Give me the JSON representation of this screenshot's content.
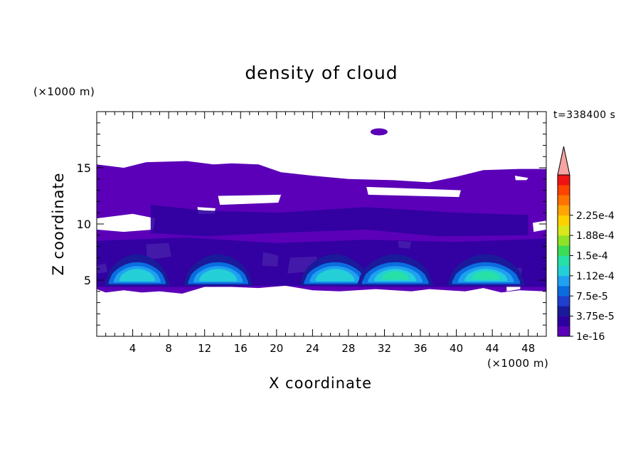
{
  "chart_data": {
    "type": "heatmap",
    "title": "density of cloud",
    "annotation": "t=338400 s",
    "xlabel": "X coordinate",
    "ylabel": "Z coordinate",
    "x_unit": "(×1000 m)",
    "y_unit": "(×1000 m)",
    "xlim": [
      0,
      50
    ],
    "ylim": [
      0,
      20
    ],
    "x_ticks": [
      4,
      8,
      12,
      16,
      20,
      24,
      28,
      32,
      36,
      40,
      44,
      48
    ],
    "y_ticks": [
      5,
      10,
      15
    ],
    "colorbar": {
      "labels": [
        "1e-16",
        "3.75e-5",
        "7.5e-5",
        "1.12e-4",
        "1.5e-4",
        "1.88e-4",
        "2.25e-4"
      ],
      "colors": [
        "#5b00b8",
        "#2f00a0",
        "#1a1a9a",
        "#1f3fcf",
        "#0b6ce0",
        "#1fa0f0",
        "#24cfd8",
        "#27e0a8",
        "#3ddc57",
        "#8ee227",
        "#d8e81a",
        "#ffd000",
        "#ffa400",
        "#ff7300",
        "#ff4300",
        "#f01313"
      ],
      "overflow_color": "#f5a3a3"
    },
    "regions": [
      {
        "level": 0,
        "x_range": [
          0,
          50
        ],
        "z_range": [
          4,
          15.5
        ],
        "description_value": "1e-16"
      },
      {
        "level": 1,
        "x_range": [
          0,
          50
        ],
        "z_range": [
          4.2,
          12
        ]
      },
      {
        "level": 2,
        "x_range": [
          0,
          50
        ],
        "z_range": [
          4.5,
          8
        ]
      },
      {
        "level": 5,
        "x_range": [
          2,
          48
        ],
        "z_range": [
          5,
          6.5
        ]
      },
      {
        "level": 7,
        "x_range": [
          30,
          35
        ],
        "z_range": [
          5.5,
          6
        ]
      }
    ]
  }
}
